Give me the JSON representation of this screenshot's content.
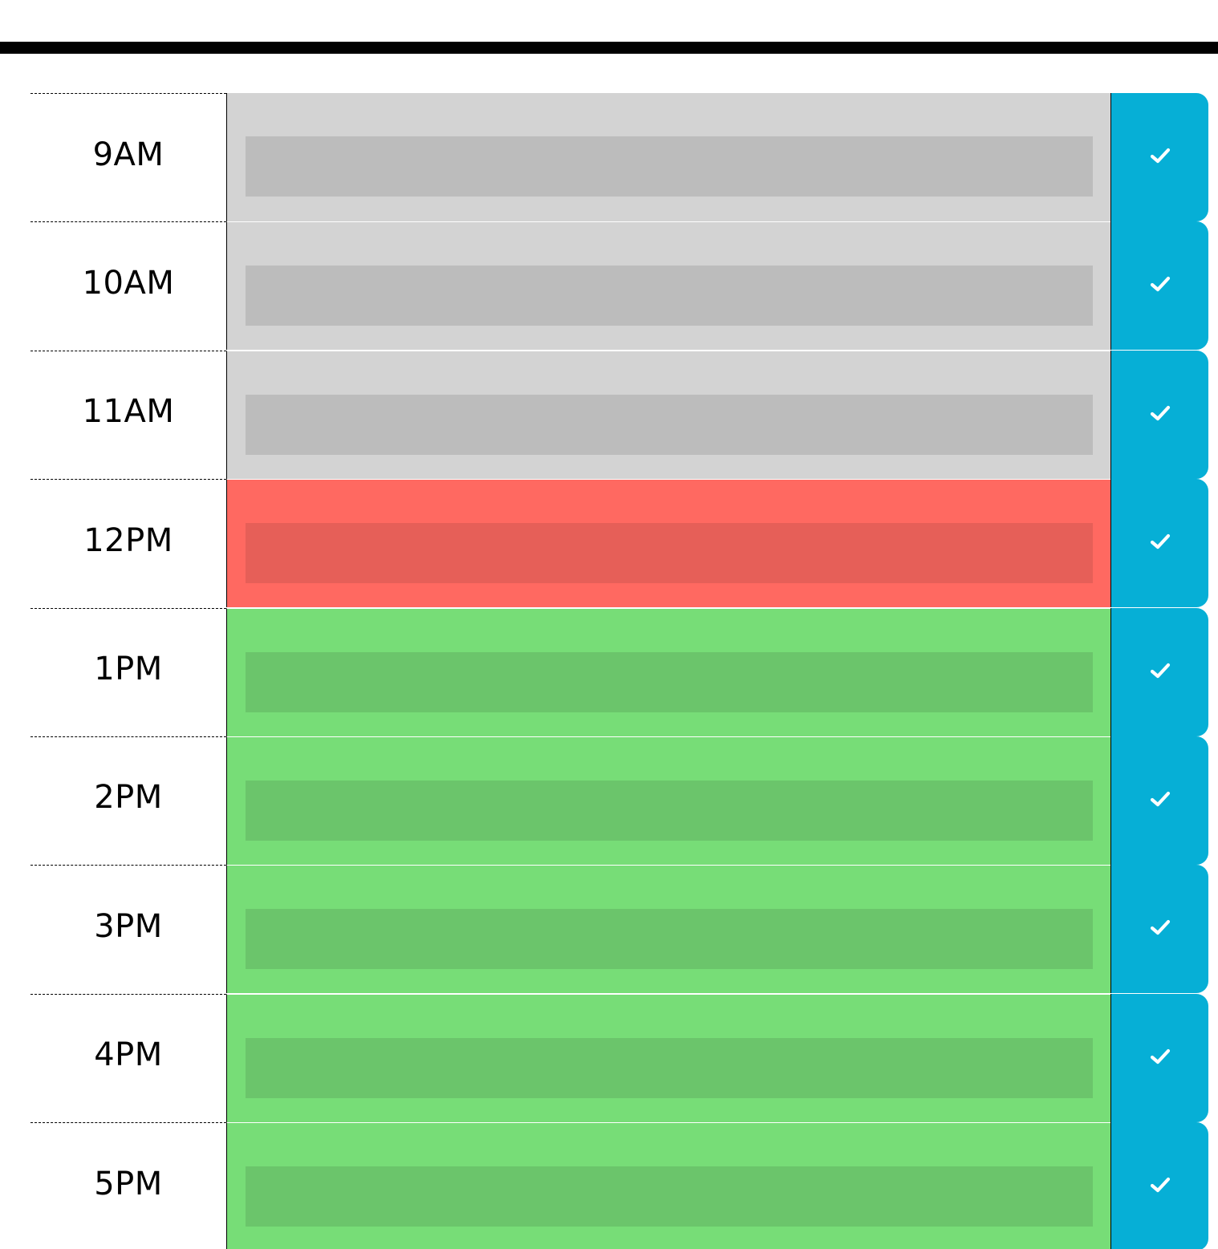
{
  "colors": {
    "past": "#d3d3d3",
    "present": "#ff6961",
    "future": "#77dd77",
    "save_button": "#06afd6"
  },
  "timeblocks": [
    {
      "hour": "9AM",
      "status": "past",
      "event_text": "",
      "save_icon": "check-icon"
    },
    {
      "hour": "10AM",
      "status": "past",
      "event_text": "",
      "save_icon": "check-icon"
    },
    {
      "hour": "11AM",
      "status": "past",
      "event_text": "",
      "save_icon": "check-icon"
    },
    {
      "hour": "12PM",
      "status": "present",
      "event_text": "",
      "save_icon": "check-icon"
    },
    {
      "hour": "1PM",
      "status": "future",
      "event_text": "",
      "save_icon": "check-icon"
    },
    {
      "hour": "2PM",
      "status": "future",
      "event_text": "",
      "save_icon": "check-icon"
    },
    {
      "hour": "3PM",
      "status": "future",
      "event_text": "",
      "save_icon": "check-icon"
    },
    {
      "hour": "4PM",
      "status": "future",
      "event_text": "",
      "save_icon": "check-icon"
    },
    {
      "hour": "5PM",
      "status": "future",
      "event_text": "",
      "save_icon": "check-icon"
    }
  ]
}
